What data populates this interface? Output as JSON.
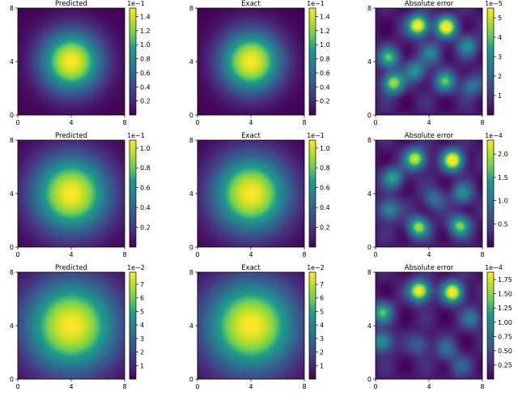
{
  "colors": {
    "viridis": [
      "#440154",
      "#482777",
      "#3f4a8a",
      "#31678e",
      "#26838f",
      "#1f9d8a",
      "#6cce5a",
      "#b6de2b",
      "#fee825"
    ]
  },
  "chart_data": [
    {
      "type": "heatmap",
      "title": "Predicted",
      "xlim": [
        0,
        8
      ],
      "ylim": [
        0,
        8
      ],
      "xticks": [
        "0",
        "4",
        "8"
      ],
      "yticks": [
        "0",
        "4",
        "8"
      ],
      "data_shape": "gaussian",
      "peak": [
        4,
        4
      ],
      "sigma": 1.6,
      "colorbar": {
        "ticks": [
          0.2,
          0.4,
          0.6,
          0.8,
          1.0,
          1.2,
          1.4
        ],
        "tick_labels": [
          "0.2",
          "0.4",
          "0.6",
          "0.8",
          "1.0",
          "1.2",
          "1.4"
        ],
        "min": 0.0,
        "max": 1.52,
        "multiplier": "1e−1"
      }
    },
    {
      "type": "heatmap",
      "title": "Exact",
      "xlim": [
        0,
        8
      ],
      "ylim": [
        0,
        8
      ],
      "xticks": [
        "0",
        "4",
        "8"
      ],
      "yticks": [
        "0",
        "4",
        "8"
      ],
      "data_shape": "gaussian",
      "peak": [
        4,
        4
      ],
      "sigma": 1.6,
      "colorbar": {
        "ticks": [
          0.2,
          0.4,
          0.6,
          0.8,
          1.0,
          1.2,
          1.4
        ],
        "tick_labels": [
          "0.2",
          "0.4",
          "0.6",
          "0.8",
          "1.0",
          "1.2",
          "1.4"
        ],
        "min": 0.0,
        "max": 1.52,
        "multiplier": "1e−1"
      }
    },
    {
      "type": "heatmap",
      "title": "Absolute error",
      "xlim": [
        0,
        8
      ],
      "ylim": [
        0,
        8
      ],
      "xticks": [
        "0",
        "4",
        "8"
      ],
      "yticks": [
        "0",
        "4",
        "8"
      ],
      "data_shape": "error",
      "hotspots": [
        [
          3.2,
          6.7,
          1.0
        ],
        [
          5.3,
          6.6,
          0.95
        ],
        [
          1.3,
          2.4,
          0.8
        ],
        [
          1.0,
          4.3,
          0.6
        ],
        [
          5.2,
          2.5,
          0.6
        ],
        [
          3.0,
          3.3,
          0.5
        ],
        [
          6.9,
          5.2,
          0.45
        ],
        [
          4.2,
          4.6,
          0.4
        ],
        [
          7.2,
          2.2,
          0.4
        ]
      ],
      "colorbar": {
        "ticks": [
          1,
          2,
          3,
          4,
          5
        ],
        "tick_labels": [
          "1",
          "2",
          "3",
          "4",
          "5"
        ],
        "min": 0.0,
        "max": 5.5,
        "multiplier": "1e−5"
      }
    },
    {
      "type": "heatmap",
      "title": "Predicted",
      "xlim": [
        0,
        8
      ],
      "ylim": [
        0,
        8
      ],
      "xticks": [
        "0",
        "4",
        "8"
      ],
      "yticks": [
        "0",
        "4",
        "8"
      ],
      "data_shape": "gaussian",
      "peak": [
        4,
        4
      ],
      "sigma": 2.0,
      "colorbar": {
        "ticks": [
          0.2,
          0.4,
          0.6,
          0.8,
          1.0
        ],
        "tick_labels": [
          "0.2",
          "0.4",
          "0.6",
          "0.8",
          "1.0"
        ],
        "min": 0.0,
        "max": 1.08,
        "multiplier": "1e−1"
      }
    },
    {
      "type": "heatmap",
      "title": "Exact",
      "xlim": [
        0,
        8
      ],
      "ylim": [
        0,
        8
      ],
      "xticks": [
        "0",
        "4",
        "8"
      ],
      "yticks": [
        "0",
        "4",
        "8"
      ],
      "data_shape": "gaussian",
      "peak": [
        4,
        4
      ],
      "sigma": 2.0,
      "colorbar": {
        "ticks": [
          0.2,
          0.4,
          0.6,
          0.8,
          1.0
        ],
        "tick_labels": [
          "0.2",
          "0.4",
          "0.6",
          "0.8",
          "1.0"
        ],
        "min": 0.0,
        "max": 1.08,
        "multiplier": "1e−1"
      }
    },
    {
      "type": "heatmap",
      "title": "Absolute error",
      "xlim": [
        0,
        8
      ],
      "ylim": [
        0,
        8
      ],
      "xticks": [
        "0",
        "4",
        "8"
      ],
      "yticks": [
        "0",
        "4",
        "8"
      ],
      "data_shape": "error",
      "hotspots": [
        [
          3.0,
          6.6,
          0.85
        ],
        [
          5.8,
          6.5,
          1.0
        ],
        [
          3.2,
          1.5,
          0.75
        ],
        [
          6.3,
          1.6,
          0.7
        ],
        [
          1.0,
          2.8,
          0.5
        ],
        [
          1.3,
          5.2,
          0.55
        ],
        [
          6.5,
          4.0,
          0.45
        ],
        [
          4.4,
          3.6,
          0.35
        ]
      ],
      "colorbar": {
        "ticks": [
          0.5,
          1.0,
          1.5,
          2.0
        ],
        "tick_labels": [
          "0.5",
          "1.0",
          "1.5",
          "2.0"
        ],
        "min": 0.0,
        "max": 2.3,
        "multiplier": "1e−4"
      }
    },
    {
      "type": "heatmap",
      "title": "Predicted",
      "xlim": [
        0,
        8
      ],
      "ylim": [
        0,
        8
      ],
      "xticks": [
        "0",
        "4",
        "8"
      ],
      "yticks": [
        "0",
        "4",
        "8"
      ],
      "data_shape": "gaussian",
      "peak": [
        4,
        4
      ],
      "sigma": 2.4,
      "colorbar": {
        "ticks": [
          1,
          2,
          3,
          4,
          5,
          6,
          7
        ],
        "tick_labels": [
          "1",
          "2",
          "3",
          "4",
          "5",
          "6",
          "7"
        ],
        "min": 0.0,
        "max": 7.9,
        "multiplier": "1e−2"
      }
    },
    {
      "type": "heatmap",
      "title": "Exact",
      "xlim": [
        0,
        8
      ],
      "ylim": [
        0,
        8
      ],
      "xticks": [
        "0",
        "4",
        "8"
      ],
      "yticks": [
        "0",
        "4",
        "8"
      ],
      "data_shape": "gaussian",
      "peak": [
        4,
        4
      ],
      "sigma": 2.4,
      "colorbar": {
        "ticks": [
          1,
          2,
          3,
          4,
          5,
          6,
          7
        ],
        "tick_labels": [
          "1",
          "2",
          "3",
          "4",
          "5",
          "6",
          "7"
        ],
        "min": 0.0,
        "max": 7.9,
        "multiplier": "1e−2"
      }
    },
    {
      "type": "heatmap",
      "title": "Absolute error",
      "xlim": [
        0,
        8
      ],
      "ylim": [
        0,
        8
      ],
      "xticks": [
        "0",
        "4",
        "8"
      ],
      "yticks": [
        "0",
        "4",
        "8"
      ],
      "data_shape": "error",
      "hotspots": [
        [
          3.3,
          6.6,
          1.0
        ],
        [
          5.8,
          6.5,
          0.95
        ],
        [
          0.5,
          5.0,
          0.6
        ],
        [
          0.5,
          2.8,
          0.55
        ],
        [
          3.3,
          2.6,
          0.3
        ],
        [
          5.3,
          2.2,
          0.3
        ],
        [
          7.2,
          4.5,
          0.35
        ],
        [
          6.3,
          1.0,
          0.25
        ]
      ],
      "colorbar": {
        "ticks": [
          0.25,
          0.5,
          0.75,
          1.0,
          1.25,
          1.5,
          1.75
        ],
        "tick_labels": [
          "0.25",
          "0.50",
          "0.75",
          "1.00",
          "1.25",
          "1.50",
          "1.75"
        ],
        "min": 0.0,
        "max": 1.88,
        "multiplier": "1e−4"
      }
    }
  ]
}
